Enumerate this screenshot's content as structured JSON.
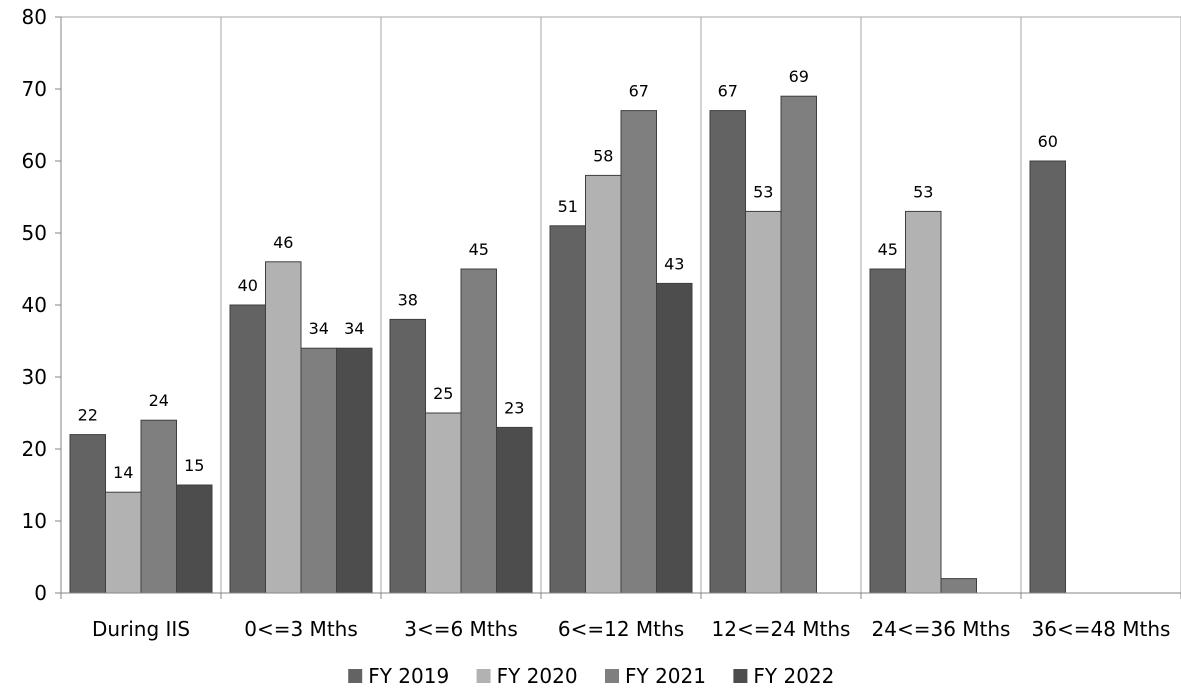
{
  "chart_data": {
    "type": "bar",
    "title": "",
    "xlabel": "",
    "ylabel": "",
    "ylim": [
      0,
      80
    ],
    "yticks": [
      0,
      10,
      20,
      30,
      40,
      50,
      60,
      70,
      80
    ],
    "grid": "vertical category separators",
    "legend_position": "bottom",
    "categories": [
      "During IIS",
      "0<=3 Mths",
      "3<=6 Mths",
      "6<=12 Mths",
      "12<=24 Mths",
      "24<=36 Mths",
      "36<=48 Mths"
    ],
    "series": [
      {
        "name": "FY 2019",
        "color": "#636363",
        "values": [
          22,
          40,
          38,
          51,
          67,
          45,
          60
        ],
        "labels": [
          "22",
          "40",
          "38",
          "51",
          "67",
          "45",
          "60"
        ]
      },
      {
        "name": "FY 2020",
        "color": "#b2b2b2",
        "values": [
          14,
          46,
          25,
          58,
          53,
          53,
          null
        ],
        "labels": [
          "14",
          "46",
          "25",
          "58",
          "53",
          "53",
          ""
        ]
      },
      {
        "name": "FY 2021",
        "color": "#7f7f7f",
        "values": [
          24,
          34,
          45,
          67,
          69,
          2,
          null
        ],
        "labels": [
          "24",
          "34",
          "45",
          "67",
          "69",
          "",
          ""
        ]
      },
      {
        "name": "FY 2022",
        "color": "#4d4d4d",
        "values": [
          15,
          34,
          23,
          43,
          null,
          null,
          null
        ],
        "labels": [
          "15",
          "34",
          "23",
          "43",
          "",
          "",
          ""
        ]
      }
    ]
  }
}
